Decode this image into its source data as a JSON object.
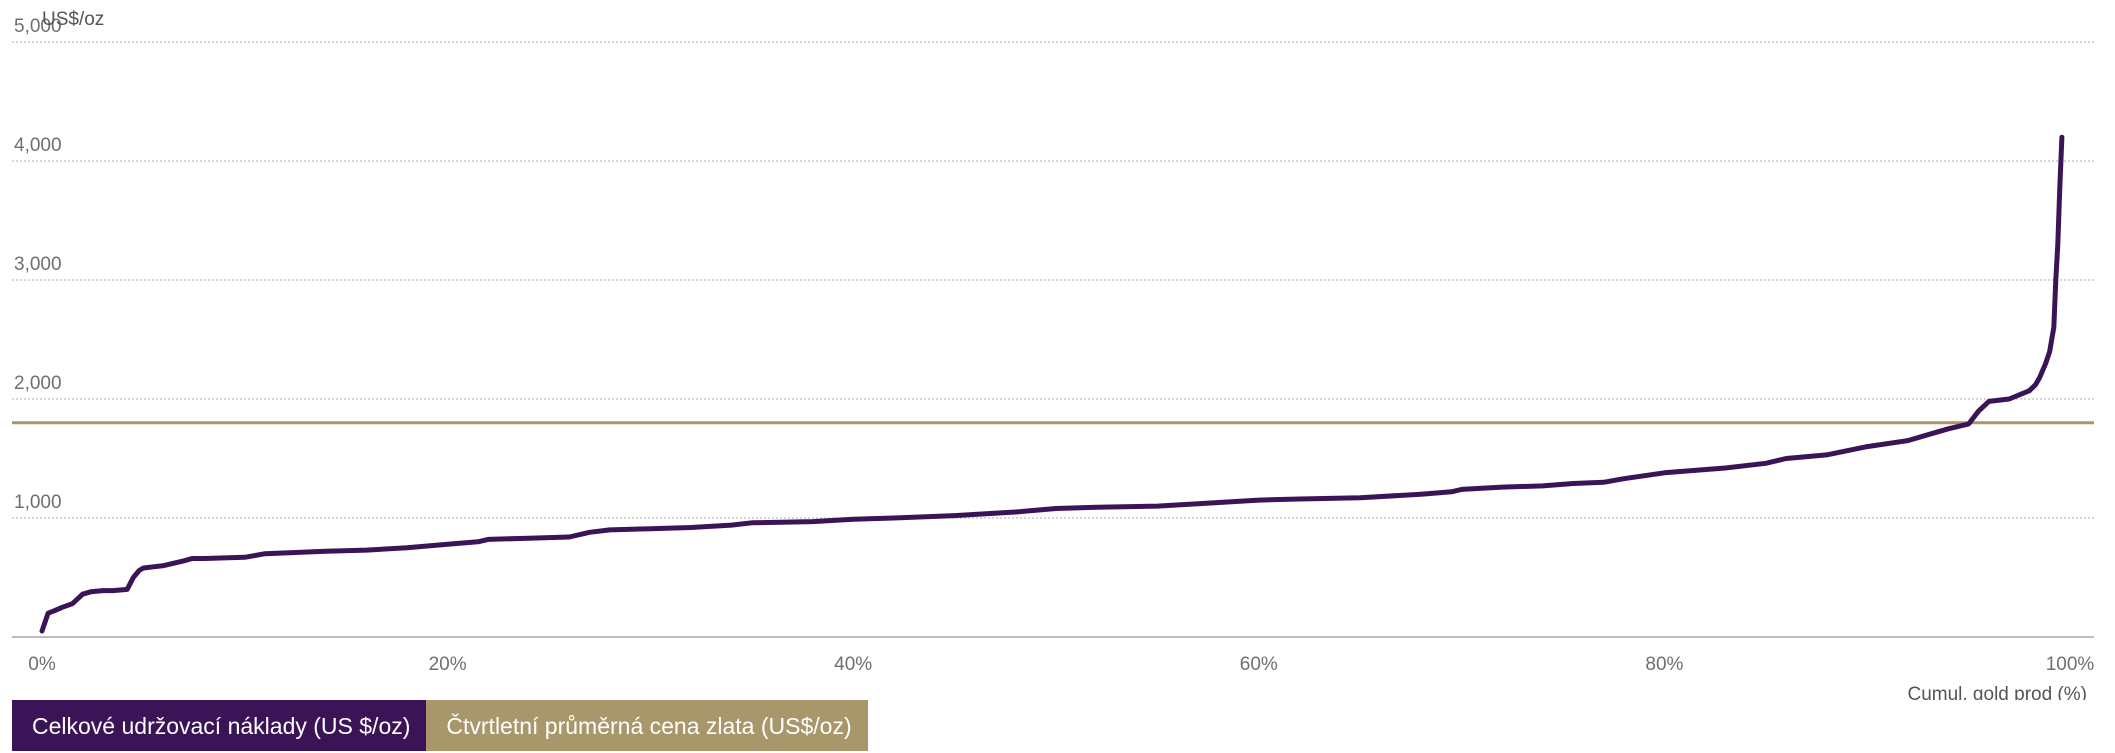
{
  "chart_data": {
    "type": "line",
    "ylabel": "US$/oz",
    "xlabel": "Cumul. gold prod (%)",
    "ylim": [
      0,
      5000
    ],
    "xlim": [
      0,
      100
    ],
    "yticks": [
      {
        "value": 1000,
        "label": "1,000"
      },
      {
        "value": 2000,
        "label": "2,000"
      },
      {
        "value": 3000,
        "label": "3,000"
      },
      {
        "value": 4000,
        "label": "4,000"
      },
      {
        "value": 5000,
        "label": "5,000"
      }
    ],
    "xticks": [
      {
        "value": 0,
        "label": "0%"
      },
      {
        "value": 20,
        "label": "20%"
      },
      {
        "value": 40,
        "label": "40%"
      },
      {
        "value": 60,
        "label": "60%"
      },
      {
        "value": 80,
        "label": "80%"
      },
      {
        "value": 100,
        "label": "100%"
      }
    ],
    "grid": true,
    "legend_position": "bottom-left",
    "series": [
      {
        "name": "Celkové udržovací náklady (US $/oz)",
        "color": "#3b1457",
        "x": [
          0,
          0.3,
          0.6,
          1.0,
          1.5,
          2.0,
          2.4,
          3.0,
          3.5,
          4.2,
          4.5,
          4.8,
          5.0,
          5.5,
          6.0,
          7.0,
          7.4,
          8.0,
          10.0,
          11.0,
          12.5,
          14.0,
          16.0,
          18.0,
          20.0,
          21.5,
          22.0,
          24.0,
          26.0,
          27.0,
          28.0,
          30.0,
          32.0,
          34.0,
          35.0,
          38.0,
          40.0,
          42.0,
          45.0,
          48.0,
          50.0,
          52.0,
          55.0,
          57.0,
          60.0,
          62.0,
          65.0,
          68.0,
          69.5,
          70.0,
          72.0,
          74.0,
          75.5,
          77.0,
          78.0,
          80.0,
          83.0,
          85.0,
          86.0,
          88.0,
          90.0,
          92.0,
          93.0,
          94.0,
          95.0,
          95.5,
          96.0,
          97.0,
          98.0,
          98.3,
          98.5,
          98.8,
          99.0,
          99.1,
          99.2,
          99.3,
          99.4,
          99.5,
          99.6
        ],
        "values": [
          50,
          200,
          220,
          250,
          280,
          360,
          380,
          390,
          390,
          400,
          500,
          560,
          580,
          590,
          600,
          640,
          660,
          660,
          670,
          700,
          710,
          720,
          730,
          750,
          780,
          800,
          820,
          830,
          840,
          880,
          900,
          910,
          920,
          940,
          960,
          970,
          990,
          1000,
          1020,
          1050,
          1080,
          1090,
          1100,
          1120,
          1150,
          1160,
          1170,
          1200,
          1220,
          1240,
          1260,
          1270,
          1290,
          1300,
          1330,
          1380,
          1420,
          1460,
          1500,
          1530,
          1600,
          1650,
          1700,
          1750,
          1790,
          1900,
          1980,
          2000,
          2070,
          2120,
          2180,
          2300,
          2400,
          2500,
          2600,
          3000,
          3300,
          3800,
          4200
        ]
      },
      {
        "name": "Čtvrtletní průměrná cena zlata (US$/oz)",
        "color": "#a8976a",
        "type": "hline",
        "value": 1800
      }
    ]
  }
}
